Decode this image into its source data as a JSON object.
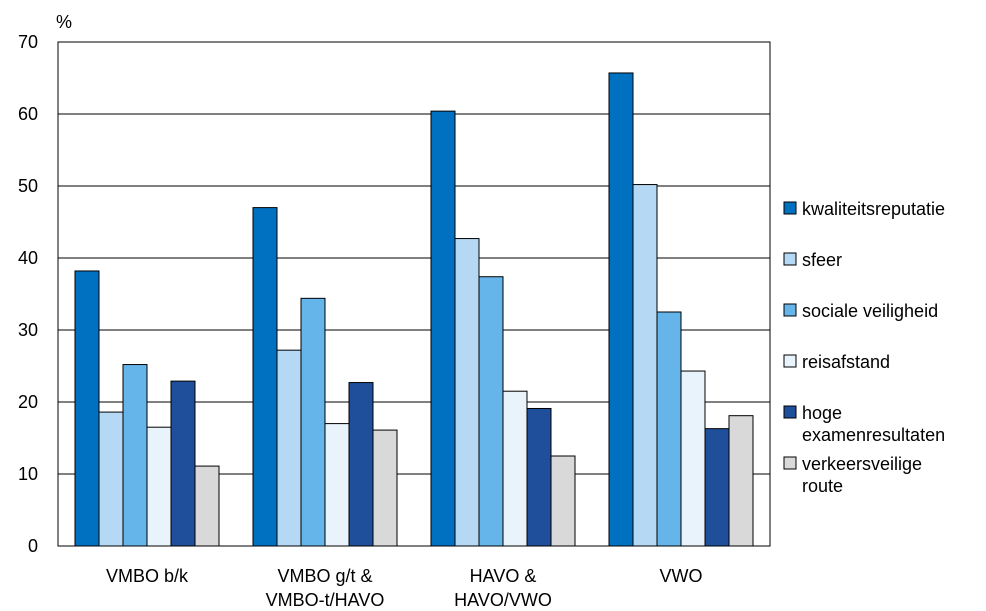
{
  "chart_data": {
    "type": "bar",
    "ylabel": "%",
    "ylim": [
      0,
      70
    ],
    "yticks": [
      0,
      10,
      20,
      30,
      40,
      50,
      60,
      70
    ],
    "grid": true,
    "legend_position": "right",
    "categories": [
      [
        "VMBO b/k"
      ],
      [
        "VMBO g/t &",
        "VMBO-t/HAVO"
      ],
      [
        "HAVO &",
        "HAVO/VWO"
      ],
      [
        "VWO"
      ]
    ],
    "series": [
      {
        "name": [
          "kwaliteitsreputatie"
        ],
        "color": "#0070c0",
        "values": [
          38.2,
          47.0,
          60.4,
          65.7
        ]
      },
      {
        "name": [
          "sfeer"
        ],
        "color": "#b5d9f4",
        "values": [
          18.6,
          27.2,
          42.7,
          50.2
        ]
      },
      {
        "name": [
          "sociale veiligheid"
        ],
        "color": "#66b5ea",
        "values": [
          25.2,
          34.4,
          37.4,
          32.5
        ]
      },
      {
        "name": [
          "reisafstand"
        ],
        "color": "#e9f3fb",
        "values": [
          16.5,
          17.0,
          21.5,
          24.3
        ]
      },
      {
        "name": [
          "hoge",
          "examenresultaten"
        ],
        "color": "#1f4e9a",
        "values": [
          22.9,
          22.7,
          19.1,
          16.3
        ]
      },
      {
        "name": [
          "verkeersveilige",
          "route"
        ],
        "color": "#d9d9d9",
        "values": [
          11.1,
          16.1,
          12.5,
          18.1
        ]
      }
    ]
  }
}
